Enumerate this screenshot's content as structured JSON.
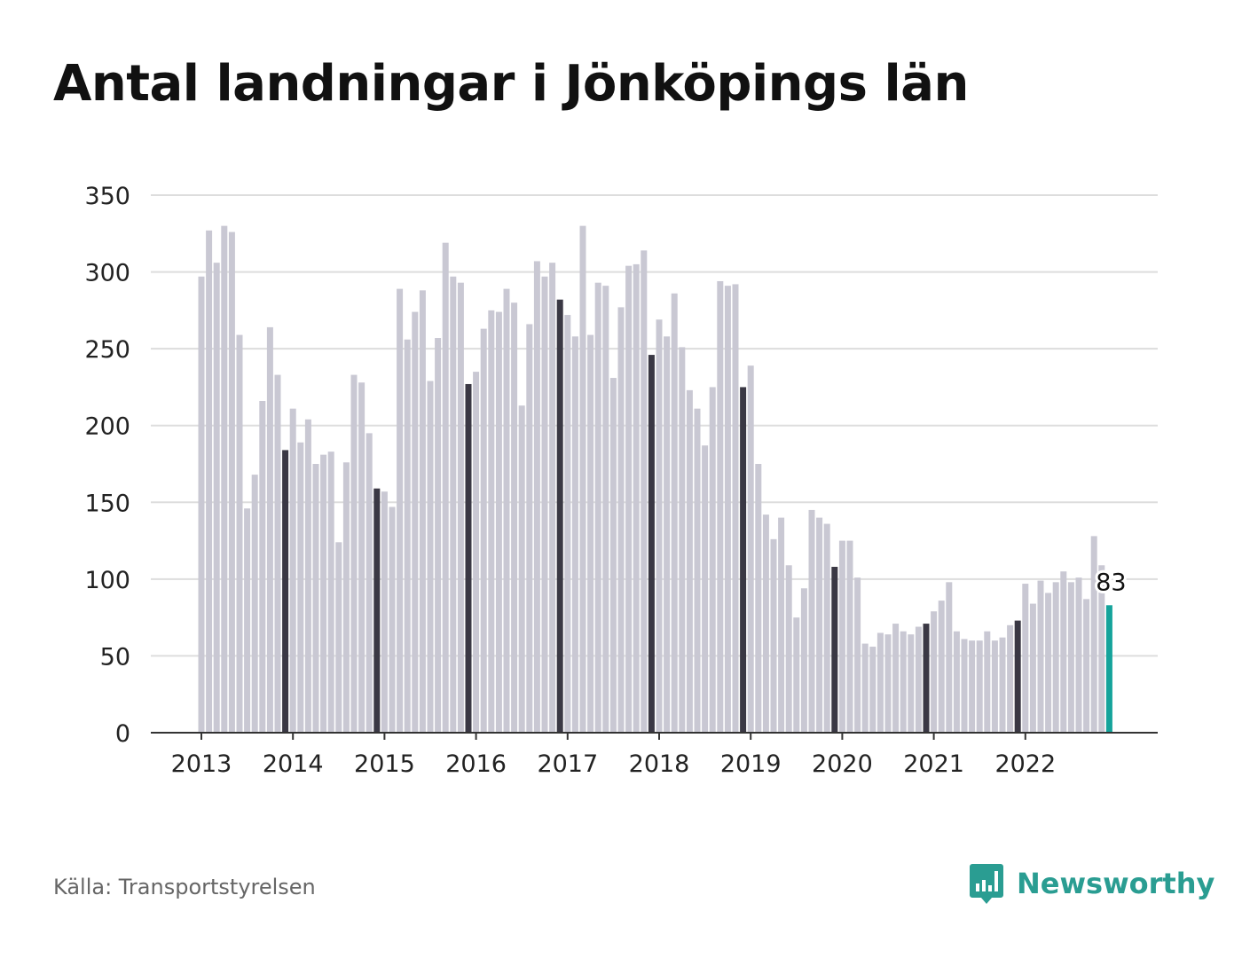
{
  "title": "Antal landningar i Jönköpings län",
  "source": "Källa: Transportstyrelsen",
  "brand": {
    "name": "Newsworthy",
    "icon": "bar-chart-speech-icon",
    "color": "#2a9d92"
  },
  "colors": {
    "bar": "#c9c8d3",
    "december": "#3a3844",
    "latest": "#15a39b",
    "grid": "#dddddd",
    "axis": "#333333"
  },
  "chart_data": {
    "type": "bar",
    "title": "Antal landningar i Jönköpings län",
    "xlabel": "",
    "ylabel": "",
    "ylim": [
      0,
      350
    ],
    "yticks": [
      "0",
      "50",
      "100",
      "150",
      "200",
      "250",
      "300",
      "350"
    ],
    "xticks": [
      "2013",
      "2014",
      "2015",
      "2016",
      "2017",
      "2018",
      "2019",
      "2020",
      "2021",
      "2022"
    ],
    "grid": true,
    "last_value_label": "83",
    "series": [
      {
        "year": "2013",
        "values": [
          297,
          327,
          306,
          330,
          326,
          259,
          146,
          168,
          216,
          264,
          233,
          184
        ]
      },
      {
        "year": "2014",
        "values": [
          211,
          189,
          204,
          175,
          181,
          183,
          124,
          176,
          233,
          228,
          195,
          159
        ]
      },
      {
        "year": "2015",
        "values": [
          157,
          147,
          289,
          256,
          274,
          288,
          229,
          257,
          319,
          297,
          293,
          227
        ]
      },
      {
        "year": "2016",
        "values": [
          235,
          263,
          275,
          274,
          289,
          280,
          213,
          266,
          307,
          297,
          306,
          282
        ]
      },
      {
        "year": "2017",
        "values": [
          272,
          258,
          330,
          259,
          293,
          291,
          231,
          277,
          304,
          305,
          314,
          246
        ]
      },
      {
        "year": "2018",
        "values": [
          269,
          258,
          286,
          251,
          223,
          211,
          187,
          225,
          294,
          291,
          292,
          225
        ]
      },
      {
        "year": "2019",
        "values": [
          239,
          175,
          142,
          126,
          140,
          109,
          75,
          94,
          145,
          140,
          136,
          108
        ]
      },
      {
        "year": "2020",
        "values": [
          125,
          125,
          101,
          58,
          56,
          65,
          64,
          71,
          66,
          64,
          69,
          71
        ]
      },
      {
        "year": "2021",
        "values": [
          79,
          86,
          98,
          66,
          61,
          60,
          60,
          66,
          60,
          62,
          70,
          73
        ]
      },
      {
        "year": "2022",
        "values": [
          97,
          84,
          99,
          91,
          98,
          105,
          98,
          101,
          87,
          128,
          109,
          83
        ]
      }
    ]
  }
}
